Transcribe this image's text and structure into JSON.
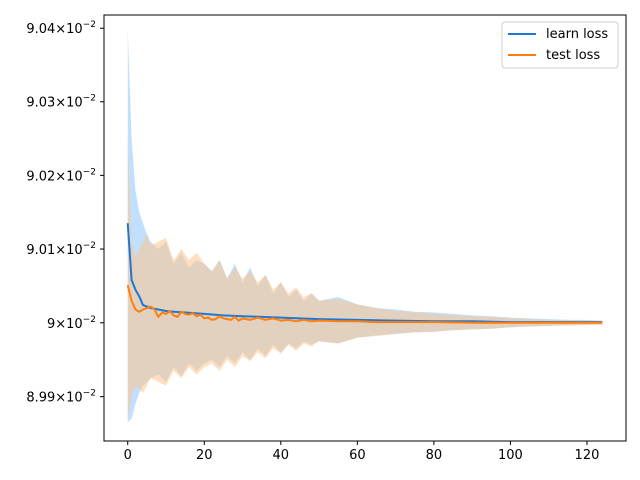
{
  "chart_data": {
    "type": "line",
    "title": "",
    "xlabel": "",
    "ylabel": "",
    "xlim": [
      -6.2,
      130.2
    ],
    "ylim": [
      0.08984,
      0.090418
    ],
    "yscale": "log",
    "grid": false,
    "legend_position": "top-right",
    "xticks": [
      0,
      20,
      40,
      60,
      80,
      100,
      120
    ],
    "yticks": [
      {
        "value": 0.0899,
        "mantissa": "8.99",
        "exp": "−2"
      },
      {
        "value": 0.09,
        "mantissa": "9",
        "exp": "−2"
      },
      {
        "value": 0.0901,
        "mantissa": "9.01",
        "exp": "−2"
      },
      {
        "value": 0.0902,
        "mantissa": "9.02",
        "exp": "−2"
      },
      {
        "value": 0.0903,
        "mantissa": "9.03",
        "exp": "−2"
      },
      {
        "value": 0.0904,
        "mantissa": "9.04",
        "exp": "−2"
      }
    ],
    "series": [
      {
        "name": "learn loss",
        "color": "#1f77d4",
        "band_color": "#9fd0ff",
        "points": [
          [
            0,
            0.090135
          ],
          [
            1,
            0.090058
          ],
          [
            2,
            0.090045
          ],
          [
            3,
            0.090036
          ],
          [
            4,
            0.090024
          ],
          [
            5,
            0.090022
          ],
          [
            6,
            0.09002
          ],
          [
            8,
            0.090018
          ],
          [
            10,
            0.090016
          ],
          [
            12,
            0.090015
          ],
          [
            15,
            0.090014
          ],
          [
            20,
            0.090012
          ],
          [
            25,
            0.09001
          ],
          [
            30,
            0.090009
          ],
          [
            35,
            0.090008
          ],
          [
            40,
            0.090007
          ],
          [
            50,
            0.090005
          ],
          [
            60,
            0.090004
          ],
          [
            70,
            0.090003
          ],
          [
            80,
            0.090002
          ],
          [
            90,
            0.090002
          ],
          [
            100,
            0.090001
          ],
          [
            110,
            0.090001
          ],
          [
            124,
            0.090001
          ]
        ],
        "upper": [
          [
            0,
            0.0904
          ],
          [
            1,
            0.09025
          ],
          [
            2,
            0.09018
          ],
          [
            3,
            0.09015
          ],
          [
            4,
            0.090135
          ],
          [
            5,
            0.09012
          ],
          [
            6,
            0.09011
          ],
          [
            8,
            0.0901
          ],
          [
            10,
            0.09011
          ],
          [
            12,
            0.09008
          ],
          [
            14,
            0.090095
          ],
          [
            16,
            0.090075
          ],
          [
            18,
            0.090085
          ],
          [
            20,
            0.09008
          ],
          [
            22,
            0.09007
          ],
          [
            24,
            0.090085
          ],
          [
            26,
            0.09006
          ],
          [
            28,
            0.09008
          ],
          [
            30,
            0.090055
          ],
          [
            32,
            0.090075
          ],
          [
            34,
            0.09005
          ],
          [
            36,
            0.090065
          ],
          [
            38,
            0.09004
          ],
          [
            40,
            0.090055
          ],
          [
            42,
            0.090035
          ],
          [
            44,
            0.090045
          ],
          [
            46,
            0.09003
          ],
          [
            48,
            0.09004
          ],
          [
            50,
            0.09003
          ],
          [
            55,
            0.090035
          ],
          [
            60,
            0.090025
          ],
          [
            65,
            0.09002
          ],
          [
            70,
            0.090018
          ],
          [
            75,
            0.090015
          ],
          [
            80,
            0.090014
          ],
          [
            85,
            0.090012
          ],
          [
            90,
            0.09001
          ],
          [
            95,
            0.090009
          ],
          [
            100,
            0.090007
          ],
          [
            105,
            0.090006
          ],
          [
            110,
            0.090005
          ],
          [
            115,
            0.090004
          ],
          [
            120,
            0.090004
          ],
          [
            124,
            0.090003
          ]
        ],
        "lower": [
          [
            0,
            0.089865
          ],
          [
            1,
            0.08987
          ],
          [
            2,
            0.08989
          ],
          [
            3,
            0.089905
          ],
          [
            4,
            0.089915
          ],
          [
            5,
            0.08992
          ],
          [
            6,
            0.089925
          ],
          [
            8,
            0.08993
          ],
          [
            10,
            0.08992
          ],
          [
            12,
            0.08994
          ],
          [
            14,
            0.089928
          ],
          [
            16,
            0.089945
          ],
          [
            18,
            0.089935
          ],
          [
            20,
            0.089945
          ],
          [
            22,
            0.08995
          ],
          [
            24,
            0.08994
          ],
          [
            26,
            0.089955
          ],
          [
            28,
            0.089945
          ],
          [
            30,
            0.08996
          ],
          [
            32,
            0.08995
          ],
          [
            34,
            0.089965
          ],
          [
            36,
            0.089955
          ],
          [
            38,
            0.08997
          ],
          [
            40,
            0.08996
          ],
          [
            42,
            0.089972
          ],
          [
            44,
            0.089965
          ],
          [
            46,
            0.089975
          ],
          [
            48,
            0.08997
          ],
          [
            50,
            0.089975
          ],
          [
            55,
            0.089972
          ],
          [
            60,
            0.08998
          ],
          [
            65,
            0.089983
          ],
          [
            70,
            0.089985
          ],
          [
            75,
            0.089987
          ],
          [
            80,
            0.089988
          ],
          [
            85,
            0.08999
          ],
          [
            90,
            0.089991
          ],
          [
            95,
            0.089992
          ],
          [
            100,
            0.089994
          ],
          [
            105,
            0.089995
          ],
          [
            110,
            0.089996
          ],
          [
            115,
            0.089997
          ],
          [
            120,
            0.089997
          ],
          [
            124,
            0.089998
          ]
        ]
      },
      {
        "name": "test loss",
        "color": "#ff7f0e",
        "band_color": "#ffc48a",
        "points": [
          [
            0,
            0.090051
          ],
          [
            1,
            0.09003
          ],
          [
            2,
            0.090018
          ],
          [
            3,
            0.090015
          ],
          [
            4,
            0.090018
          ],
          [
            5,
            0.09002
          ],
          [
            6,
            0.090022
          ],
          [
            7,
            0.090018
          ],
          [
            8,
            0.090008
          ],
          [
            9,
            0.090014
          ],
          [
            10,
            0.090012
          ],
          [
            11,
            0.090016
          ],
          [
            12,
            0.09001
          ],
          [
            13,
            0.090008
          ],
          [
            14,
            0.090015
          ],
          [
            15,
            0.090012
          ],
          [
            16,
            0.090011
          ],
          [
            17,
            0.090013
          ],
          [
            18,
            0.090009
          ],
          [
            19,
            0.090011
          ],
          [
            20,
            0.090006
          ],
          [
            21,
            0.090007
          ],
          [
            22,
            0.090004
          ],
          [
            23,
            0.090005
          ],
          [
            24,
            0.090009
          ],
          [
            25,
            0.090006
          ],
          [
            26,
            0.090005
          ],
          [
            27,
            0.090004
          ],
          [
            28,
            0.090008
          ],
          [
            29,
            0.090003
          ],
          [
            30,
            0.090006
          ],
          [
            32,
            0.090004
          ],
          [
            34,
            0.090007
          ],
          [
            36,
            0.090004
          ],
          [
            38,
            0.090006
          ],
          [
            40,
            0.090003
          ],
          [
            42,
            0.090004
          ],
          [
            44,
            0.090002
          ],
          [
            46,
            0.090004
          ],
          [
            48,
            0.090002
          ],
          [
            50,
            0.090003
          ],
          [
            55,
            0.090002
          ],
          [
            60,
            0.090002
          ],
          [
            65,
            0.090001
          ],
          [
            70,
            0.090001
          ],
          [
            80,
            0.090001
          ],
          [
            90,
            0.09
          ],
          [
            100,
            0.09
          ],
          [
            110,
            0.09
          ],
          [
            124,
            0.09
          ]
        ],
        "upper": [
          [
            0,
            0.09025
          ],
          [
            1,
            0.09011
          ],
          [
            2,
            0.09009
          ],
          [
            3,
            0.0901
          ],
          [
            4,
            0.09011
          ],
          [
            5,
            0.09012
          ],
          [
            6,
            0.090105
          ],
          [
            8,
            0.09011
          ],
          [
            10,
            0.090115
          ],
          [
            12,
            0.090085
          ],
          [
            14,
            0.0901
          ],
          [
            16,
            0.090085
          ],
          [
            18,
            0.090095
          ],
          [
            20,
            0.09008
          ],
          [
            22,
            0.09007
          ],
          [
            24,
            0.090085
          ],
          [
            26,
            0.09006
          ],
          [
            28,
            0.090075
          ],
          [
            30,
            0.09006
          ],
          [
            32,
            0.09007
          ],
          [
            34,
            0.090055
          ],
          [
            36,
            0.090065
          ],
          [
            38,
            0.090045
          ],
          [
            40,
            0.090055
          ],
          [
            42,
            0.09004
          ],
          [
            44,
            0.090048
          ],
          [
            46,
            0.090035
          ],
          [
            48,
            0.09004
          ],
          [
            50,
            0.09003
          ],
          [
            55,
            0.090032
          ],
          [
            60,
            0.090025
          ],
          [
            65,
            0.09002
          ],
          [
            70,
            0.090016
          ],
          [
            75,
            0.090014
          ],
          [
            80,
            0.090012
          ],
          [
            85,
            0.09001
          ],
          [
            90,
            0.090009
          ],
          [
            95,
            0.090008
          ],
          [
            100,
            0.090006
          ],
          [
            105,
            0.090005
          ],
          [
            110,
            0.090004
          ],
          [
            115,
            0.090004
          ],
          [
            120,
            0.090003
          ],
          [
            124,
            0.090003
          ]
        ],
        "lower": [
          [
            0,
            0.08987
          ],
          [
            1,
            0.0899
          ],
          [
            2,
            0.089915
          ],
          [
            3,
            0.08991
          ],
          [
            4,
            0.089905
          ],
          [
            5,
            0.089915
          ],
          [
            6,
            0.089925
          ],
          [
            8,
            0.08992
          ],
          [
            10,
            0.089915
          ],
          [
            12,
            0.089935
          ],
          [
            14,
            0.089925
          ],
          [
            16,
            0.08994
          ],
          [
            18,
            0.08993
          ],
          [
            20,
            0.08994
          ],
          [
            22,
            0.089945
          ],
          [
            24,
            0.089935
          ],
          [
            26,
            0.08995
          ],
          [
            28,
            0.08994
          ],
          [
            30,
            0.089955
          ],
          [
            32,
            0.089948
          ],
          [
            34,
            0.08996
          ],
          [
            36,
            0.089952
          ],
          [
            38,
            0.089966
          ],
          [
            40,
            0.089958
          ],
          [
            42,
            0.08997
          ],
          [
            44,
            0.089962
          ],
          [
            46,
            0.089972
          ],
          [
            48,
            0.089968
          ],
          [
            50,
            0.089975
          ],
          [
            55,
            0.089972
          ],
          [
            60,
            0.08998
          ],
          [
            65,
            0.089982
          ],
          [
            70,
            0.089985
          ],
          [
            75,
            0.089987
          ],
          [
            80,
            0.089988
          ],
          [
            85,
            0.08999
          ],
          [
            90,
            0.089991
          ],
          [
            95,
            0.089992
          ],
          [
            100,
            0.089994
          ],
          [
            105,
            0.089995
          ],
          [
            110,
            0.089996
          ],
          [
            115,
            0.089996
          ],
          [
            120,
            0.089997
          ],
          [
            124,
            0.089997
          ]
        ]
      }
    ]
  }
}
